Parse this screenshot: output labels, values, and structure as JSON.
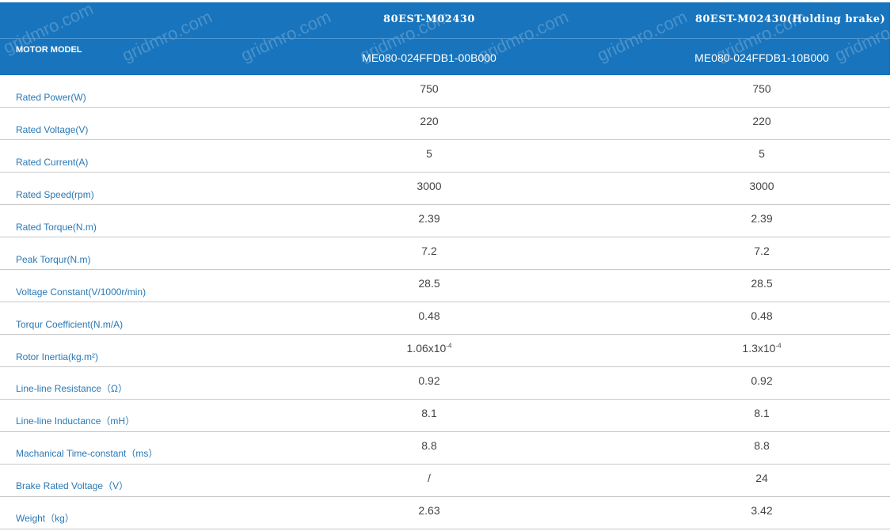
{
  "header": {
    "label": "MOTOR MODEL",
    "columns": [
      {
        "title": "80EST-M02430",
        "model": "ME080-024FFDB1-00B000"
      },
      {
        "title": "80EST-M02430(Holding brake)",
        "model": "ME080-024FFDB1-10B000"
      }
    ],
    "watermark": "gridmro.com",
    "color": "#1874bc"
  },
  "rows": [
    {
      "label": "Rated Power(W)",
      "v1": "750",
      "v2": "750"
    },
    {
      "label": "Rated Voltage(V)",
      "v1": "220",
      "v2": "220"
    },
    {
      "label": "Rated Current(A)",
      "v1": "5",
      "v2": "5"
    },
    {
      "label": "Rated Speed(rpm)",
      "v1": "3000",
      "v2": "3000"
    },
    {
      "label": "Rated Torque(N.m)",
      "v1": "2.39",
      "v2": "2.39"
    },
    {
      "label": "Peak Torqur(N.m)",
      "v1": "7.2",
      "v2": "7.2"
    },
    {
      "label": "Voltage Constant(V/1000r/min)",
      "v1": "28.5",
      "v2": "28.5"
    },
    {
      "label": "Torqur Coefficient(N.m/A)",
      "v1": "0.48",
      "v2": "0.48"
    },
    {
      "label": "Rotor Inertia(kg.m²)",
      "v1": "1.06x10",
      "v1_exp": "-4",
      "v2": "1.3x10",
      "v2_exp": "-4"
    },
    {
      "label": "Line-line Resistance（Ω）",
      "v1": "0.92",
      "v2": "0.92"
    },
    {
      "label": "Line-line Inductance（mH）",
      "v1": "8.1",
      "v2": "8.1"
    },
    {
      "label": "Machanical Time-constant（ms）",
      "v1": "8.8",
      "v2": "8.8"
    },
    {
      "label": "Brake Rated Voltage（V）",
      "v1": "/",
      "v2": "24"
    },
    {
      "label": "Weight（kg）",
      "v1": "2.63",
      "v2": "3.42"
    }
  ]
}
